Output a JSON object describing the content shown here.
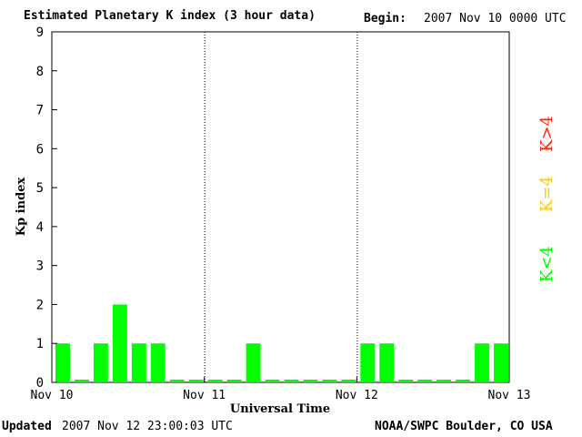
{
  "title": "Estimated Planetary K index (3 hour data)",
  "begin": {
    "label": "Begin:",
    "value": "2007 Nov 10 0000 UTC"
  },
  "footer": {
    "updated_label": "Updated",
    "updated_value": "2007 Nov 12 23:00:03 UTC",
    "credit": "NOAA/SWPC Boulder, CO USA"
  },
  "legend": {
    "items": [
      {
        "label": "K<4",
        "color": "#00ff00"
      },
      {
        "label": "K=4",
        "color": "#ffcc00"
      },
      {
        "label": "K>4",
        "color": "#ff2200"
      }
    ]
  },
  "chart_data": {
    "type": "bar",
    "xlabel": "Universal Time",
    "ylabel": "Kp index",
    "ylim": [
      0,
      9
    ],
    "yticks": [
      "0",
      "1",
      "2",
      "3",
      "4",
      "5",
      "6",
      "7",
      "8",
      "9"
    ],
    "xticks": [
      "Nov 10",
      "Nov 11",
      "Nov 12",
      "Nov 13"
    ],
    "interval_hours": 3,
    "day_dividers": true,
    "values": [
      1,
      0,
      1,
      2,
      1,
      1,
      0,
      0,
      0,
      0,
      1,
      0,
      0,
      0,
      0,
      0,
      1,
      1,
      0,
      0,
      0,
      0,
      1,
      1
    ]
  }
}
